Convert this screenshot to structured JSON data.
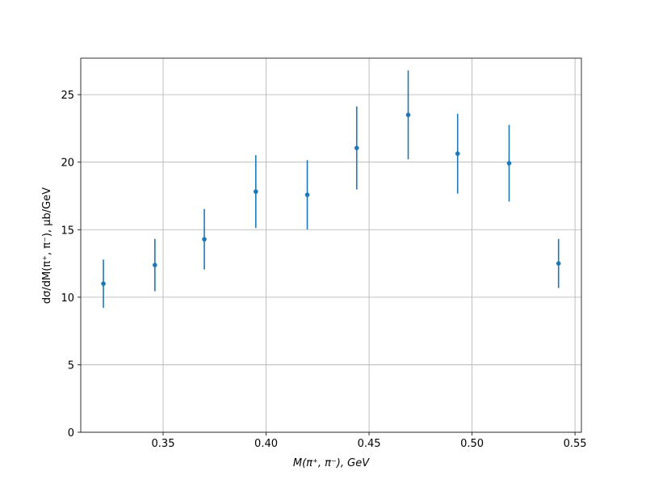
{
  "chart_data": {
    "type": "errorbar",
    "xlabel": "M(π⁺, π⁻), GeV",
    "ylabel": "dσ/dM(π⁺, π⁻), μb/GeV",
    "x": [
      0.321,
      0.346,
      0.37,
      0.395,
      0.42,
      0.444,
      0.469,
      0.493,
      0.518,
      0.542
    ],
    "values": [
      11.0,
      12.38,
      14.29,
      17.82,
      17.58,
      21.05,
      23.5,
      20.63,
      19.92,
      12.5
    ],
    "errors": [
      1.79,
      1.94,
      2.24,
      2.69,
      2.57,
      3.08,
      3.29,
      2.96,
      2.84,
      1.82
    ],
    "color": "#1f77b4",
    "xlim": [
      0.31,
      0.5531
    ],
    "ylim": [
      0,
      27.7
    ],
    "xticks": [
      {
        "value": 0.35,
        "label": "0.35"
      },
      {
        "value": 0.4,
        "label": "0.40"
      },
      {
        "value": 0.45,
        "label": "0.45"
      },
      {
        "value": 0.5,
        "label": "0.50"
      },
      {
        "value": 0.55,
        "label": "0.55"
      }
    ],
    "yticks": [
      0,
      5,
      10,
      15,
      20,
      25
    ],
    "grid": true
  }
}
